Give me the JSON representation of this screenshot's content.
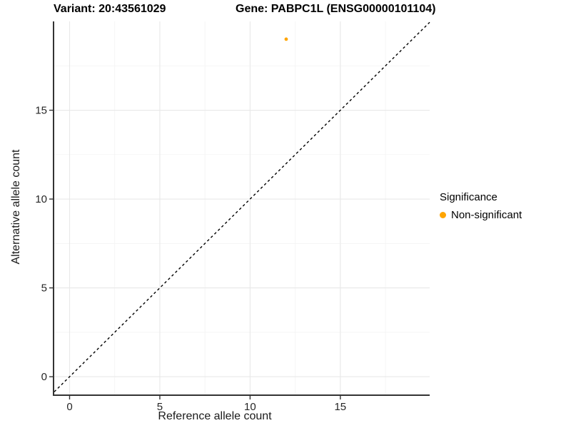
{
  "titles": {
    "variant": "Variant: 20:43561029",
    "gene": "Gene: PABPC1L (ENSG00000101104)"
  },
  "legend": {
    "title": "Significance",
    "items": [
      {
        "label": "Non-significant",
        "color": "#FFA500"
      }
    ]
  },
  "colors": {
    "background": "#ffffff",
    "major_grid": "#e8e8e8",
    "minor_grid": "#f3f3f3",
    "axis_line": "#333333",
    "tick_mark": "#333333",
    "tick_label": "#262626",
    "reference_line": "#000000",
    "point": "#FFA500"
  },
  "chart_data": {
    "type": "scatter",
    "title_left": "Variant: 20:43561029",
    "title_right": "Gene: PABPC1L (ENSG00000101104)",
    "xlabel": "Reference allele count",
    "ylabel": "Alternative allele count",
    "xlim": [
      -0.85,
      19.95
    ],
    "ylim": [
      -1.0,
      20.0
    ],
    "x_ticks": [
      0,
      5,
      10,
      15
    ],
    "y_ticks": [
      0,
      5,
      10,
      15
    ],
    "x_minor_gridlines": [
      2.5,
      7.5,
      12.5,
      17.5
    ],
    "y_minor_gridlines": [
      2.5,
      7.5,
      12.5,
      17.5
    ],
    "grid": true,
    "legend_position": "right",
    "legend_title": "Significance",
    "reference_line": {
      "type": "identity (y = x)",
      "from": -0.85,
      "to": 19.95,
      "style": "dashed"
    },
    "series": [
      {
        "name": "Non-significant",
        "color": "#FFA500",
        "points": [
          {
            "x": 12,
            "y": 19
          }
        ]
      }
    ]
  }
}
